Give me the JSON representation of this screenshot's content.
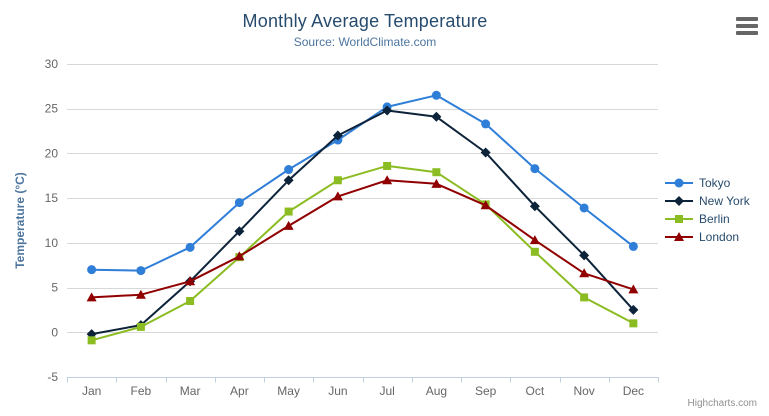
{
  "header": {
    "title": "Monthly Average Temperature",
    "subtitle": "Source: WorldClimate.com"
  },
  "credits": "Highcharts.com",
  "icons": {
    "context_menu": "hamburger-menu-icon"
  },
  "theme": {
    "title_color": "#274b6d",
    "subtitle_color": "#4d759e",
    "grid_color": "#d8d8d8",
    "axis_line_color": "#c0d0e0",
    "axis_label_color": "#666666",
    "axis_title_color": "#4d759e",
    "legend_text_color": "#274b6d",
    "credits_color": "#909090"
  },
  "chart_data": {
    "type": "line",
    "title": "Monthly Average Temperature",
    "subtitle": "Source: WorldClimate.com",
    "categories": [
      "Jan",
      "Feb",
      "Mar",
      "Apr",
      "May",
      "Jun",
      "Jul",
      "Aug",
      "Sep",
      "Oct",
      "Nov",
      "Dec"
    ],
    "xlabel": "",
    "ylabel": "Temperature (°C)",
    "ylim": [
      -5,
      30
    ],
    "ytick_step": 5,
    "grid": true,
    "legend_position": "right",
    "series": [
      {
        "name": "Tokyo",
        "color": "#2f7ed8",
        "marker": "circle",
        "values": [
          7.0,
          6.9,
          9.5,
          14.5,
          18.2,
          21.5,
          25.2,
          26.5,
          23.3,
          18.3,
          13.9,
          9.6
        ]
      },
      {
        "name": "New York",
        "color": "#0d233a",
        "marker": "diamond",
        "values": [
          -0.2,
          0.8,
          5.7,
          11.3,
          17.0,
          22.0,
          24.8,
          24.1,
          20.1,
          14.1,
          8.6,
          2.5
        ]
      },
      {
        "name": "Berlin",
        "color": "#8bbc21",
        "marker": "square",
        "values": [
          -0.9,
          0.6,
          3.5,
          8.4,
          13.5,
          17.0,
          18.6,
          17.9,
          14.3,
          9.0,
          3.9,
          1.0
        ]
      },
      {
        "name": "London",
        "color": "#910000",
        "marker": "triangle",
        "values": [
          3.9,
          4.2,
          5.7,
          8.5,
          11.9,
          15.2,
          17.0,
          16.6,
          14.2,
          10.3,
          6.6,
          4.8
        ]
      }
    ]
  }
}
